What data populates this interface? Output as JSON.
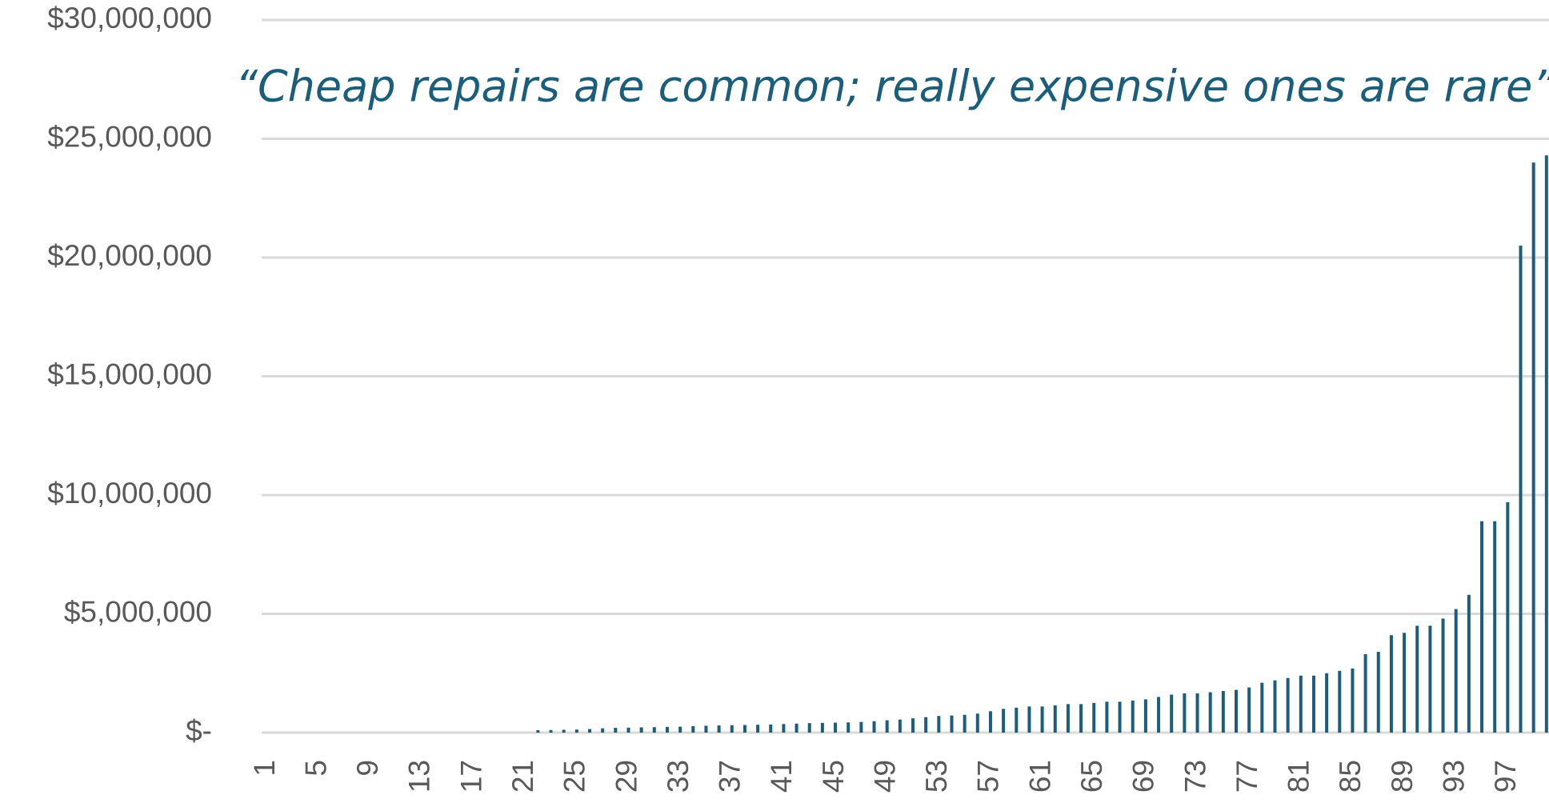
{
  "chart_data": {
    "type": "bar",
    "annotation": "“Cheap repairs are common; really expensive ones are rare”",
    "categories": [
      "1",
      null,
      null,
      null,
      "5",
      null,
      null,
      null,
      "9",
      null,
      null,
      null,
      "13",
      null,
      null,
      null,
      "17",
      null,
      null,
      null,
      "21",
      null,
      null,
      null,
      "25",
      null,
      null,
      null,
      "29",
      null,
      null,
      null,
      "33",
      null,
      null,
      null,
      "37",
      null,
      null,
      null,
      "41",
      null,
      null,
      null,
      "45",
      null,
      null,
      null,
      "49",
      null,
      null,
      null,
      "53",
      null,
      null,
      null,
      "57",
      null,
      null,
      null,
      "61",
      null,
      null,
      null,
      "65",
      null,
      null,
      null,
      "69",
      null,
      null,
      null,
      "73",
      null,
      null,
      null,
      "77",
      null,
      null,
      null,
      "81",
      null,
      null,
      null,
      "85",
      null,
      null,
      null,
      "89",
      null,
      null,
      null,
      "93",
      null,
      null,
      null,
      "97",
      null,
      null,
      null
    ],
    "values": [
      0,
      0,
      0,
      0,
      0,
      0,
      0,
      0,
      0,
      0,
      0,
      0,
      0,
      0,
      0,
      0,
      0,
      0,
      0,
      0,
      0,
      100000,
      110000,
      120000,
      130000,
      150000,
      180000,
      200000,
      210000,
      220000,
      230000,
      240000,
      250000,
      270000,
      290000,
      300000,
      310000,
      320000,
      330000,
      340000,
      360000,
      380000,
      400000,
      410000,
      420000,
      430000,
      450000,
      480000,
      520000,
      550000,
      600000,
      650000,
      700000,
      720000,
      750000,
      800000,
      900000,
      1000000,
      1050000,
      1100000,
      1100000,
      1150000,
      1200000,
      1200000,
      1250000,
      1300000,
      1300000,
      1350000,
      1400000,
      1500000,
      1600000,
      1650000,
      1650000,
      1700000,
      1750000,
      1800000,
      1900000,
      2100000,
      2200000,
      2300000,
      2400000,
      2400000,
      2500000,
      2600000,
      2700000,
      3300000,
      3400000,
      4100000,
      4200000,
      4500000,
      4500000,
      4800000,
      5200000,
      5800000,
      8900000,
      8900000,
      9700000,
      20500000,
      24000000,
      24300000
    ],
    "color": "#1b5e7b",
    "ylim": [
      0,
      30000000
    ],
    "yticks": [
      {
        "value": 0,
        "label": "$-"
      },
      {
        "value": 5000000,
        "label": "$5,000,000"
      },
      {
        "value": 10000000,
        "label": "$10,000,000"
      },
      {
        "value": 15000000,
        "label": "$15,000,000"
      },
      {
        "value": 20000000,
        "label": "$20,000,000"
      },
      {
        "value": 25000000,
        "label": "$25,000,000"
      },
      {
        "value": 30000000,
        "label": "$30,000,000"
      }
    ],
    "grid": true
  }
}
